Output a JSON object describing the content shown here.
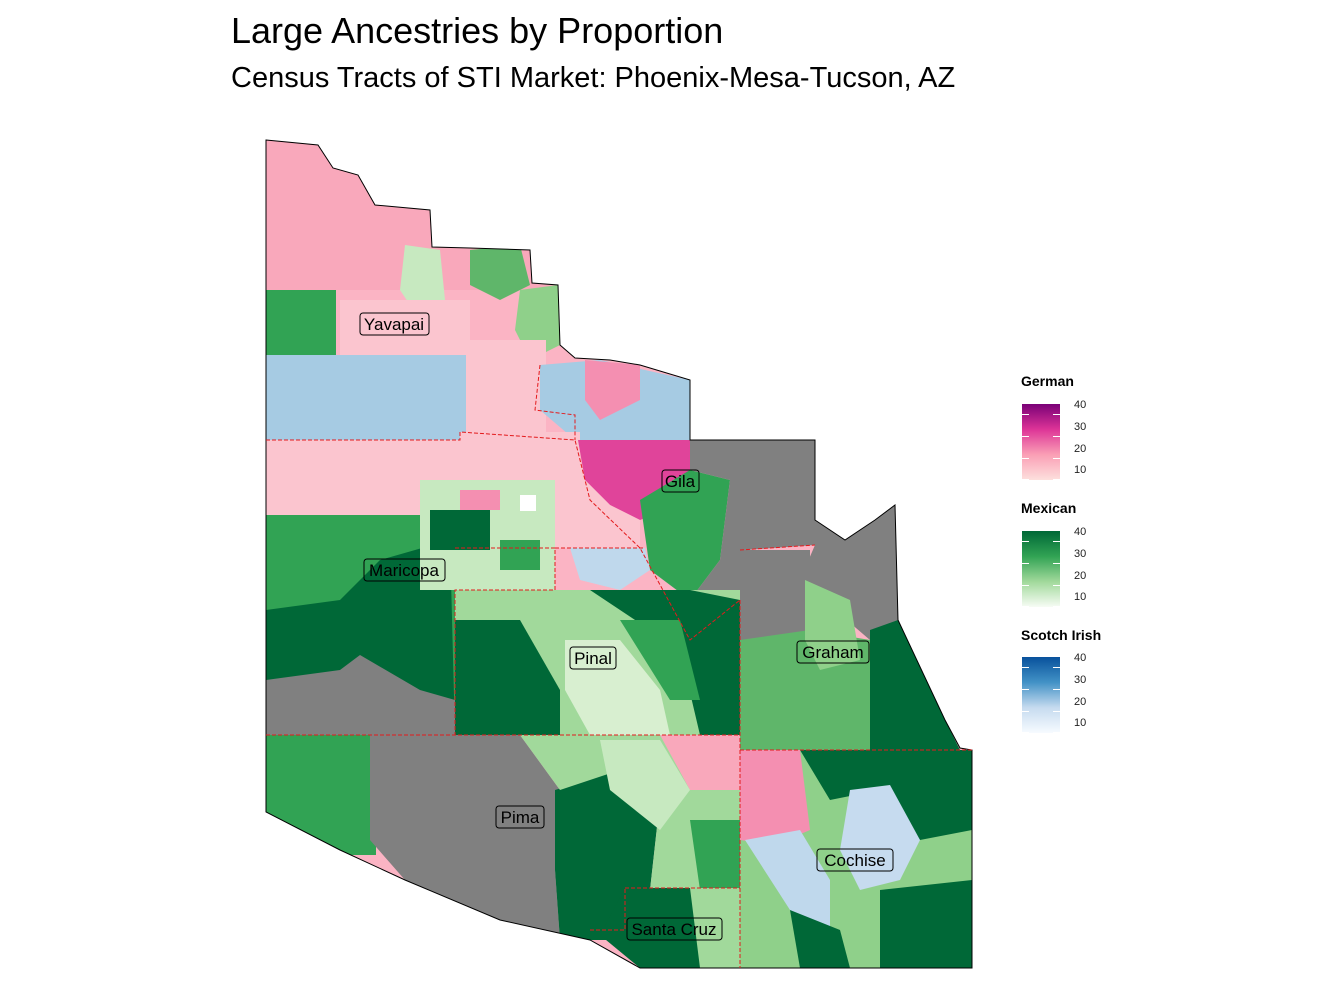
{
  "title": "Large Ancestries by Proportion",
  "subtitle": "Census Tracts of STI Market: Phoenix-Mesa-Tucson, AZ",
  "counties": [
    {
      "name": "Yavapai"
    },
    {
      "name": "Gila"
    },
    {
      "name": "Maricopa"
    },
    {
      "name": "Pinal"
    },
    {
      "name": "Graham"
    },
    {
      "name": "Pima"
    },
    {
      "name": "Cochise"
    },
    {
      "name": "Santa Cruz"
    }
  ],
  "legends": [
    {
      "title": "German",
      "ticks": [
        "40",
        "30",
        "20",
        "10"
      ],
      "colors": [
        "#7a0177",
        "#dd3497",
        "#fa9fb5",
        "#fde0dd"
      ]
    },
    {
      "title": "Mexican",
      "ticks": [
        "40",
        "30",
        "20",
        "10"
      ],
      "colors": [
        "#006837",
        "#31a354",
        "#a1d99b",
        "#f7fcf5"
      ]
    },
    {
      "title": "Scotch Irish",
      "ticks": [
        "40",
        "30",
        "20",
        "10"
      ],
      "colors": [
        "#08519c",
        "#4292c6",
        "#c6dbef",
        "#f7fbff"
      ]
    }
  ],
  "colors": {
    "no_data": "#808080",
    "county_border": "#e31a1c",
    "german_light": "#fbb4c4",
    "german_mid": "#f48fb1",
    "german_dark": "#e0449a",
    "mexican_light": "#c7e9c0",
    "mexican_mid": "#74c476",
    "mexican_dark": "#006837",
    "scotch_light": "#c6dbef",
    "scotch_mid": "#a6cbe3"
  }
}
